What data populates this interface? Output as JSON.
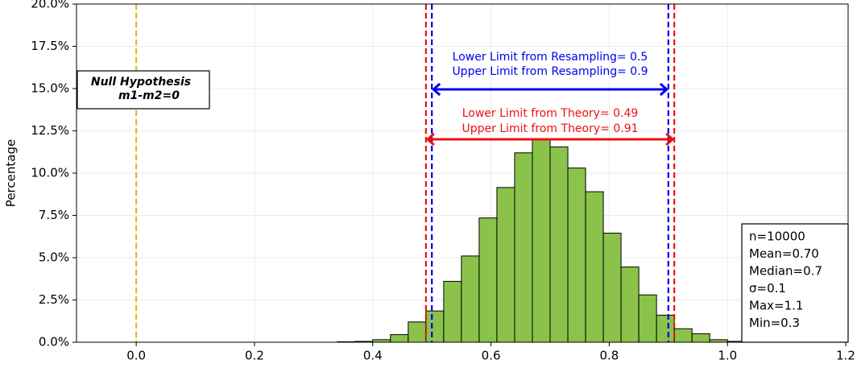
{
  "chart_data": {
    "type": "histogram",
    "ylabel": "Percentage",
    "bins": [
      0.34,
      0.37,
      0.4,
      0.43,
      0.46,
      0.49,
      0.52,
      0.55,
      0.58,
      0.61,
      0.64,
      0.67,
      0.7,
      0.73,
      0.76,
      0.79,
      0.82,
      0.85,
      0.88,
      0.91,
      0.94,
      0.97,
      1.0,
      1.03
    ],
    "counts": [
      0.03,
      0.05,
      0.15,
      0.45,
      1.2,
      1.85,
      3.6,
      5.1,
      7.35,
      9.15,
      11.2,
      12.0,
      11.55,
      10.3,
      8.9,
      6.45,
      4.45,
      2.8,
      1.6,
      0.8,
      0.5,
      0.15,
      0.05
    ],
    "color": "#8bc34a",
    "edgecolor": "#000000",
    "xlim": [
      -0.101,
      1.204
    ],
    "ylim": [
      0,
      20
    ],
    "xticks": [
      {
        "value": 0,
        "label": "0.0"
      },
      0.2,
      0.4,
      0.6,
      0.8,
      {
        "value": 1,
        "label": "1.0"
      },
      1.2
    ],
    "yticks": [
      {
        "value": 0,
        "label": "0.0%"
      },
      {
        "value": 2.5,
        "label": "2.5%"
      },
      {
        "value": 5,
        "label": "5.0%"
      },
      {
        "value": 7.5,
        "label": "7.5%"
      },
      {
        "value": 10,
        "label": "10.0%"
      },
      {
        "value": 12.5,
        "label": "12.5%"
      },
      {
        "value": 15,
        "label": "15.0%"
      },
      {
        "value": 17.5,
        "label": "17.5%"
      },
      {
        "value": 20,
        "label": "20.0%"
      }
    ],
    "grid": true,
    "null_value": 0,
    "null_color": "#d4c21a",
    "null_annotation": [
      "Null Hypothesis",
      "m1-m2=0"
    ],
    "resampling_limits": [
      0.5,
      0.9
    ],
    "resampling_color": "#0000ee",
    "resampling_annotation": [
      "Lower Limit from Resampling= 0.5",
      "Upper Limit from Resampling= 0.9"
    ],
    "theory_limits": [
      0.49,
      0.91
    ],
    "theory_color": "#ee1111",
    "theory_annotation": [
      "Lower Limit from Theory= 0.49",
      "Upper Limit from Theory= 0.91"
    ],
    "stats_box": [
      "n=10000",
      "Mean=0.70",
      "Median=0.7",
      "σ=0.1",
      "Max=1.1",
      "Min=0.3"
    ]
  }
}
